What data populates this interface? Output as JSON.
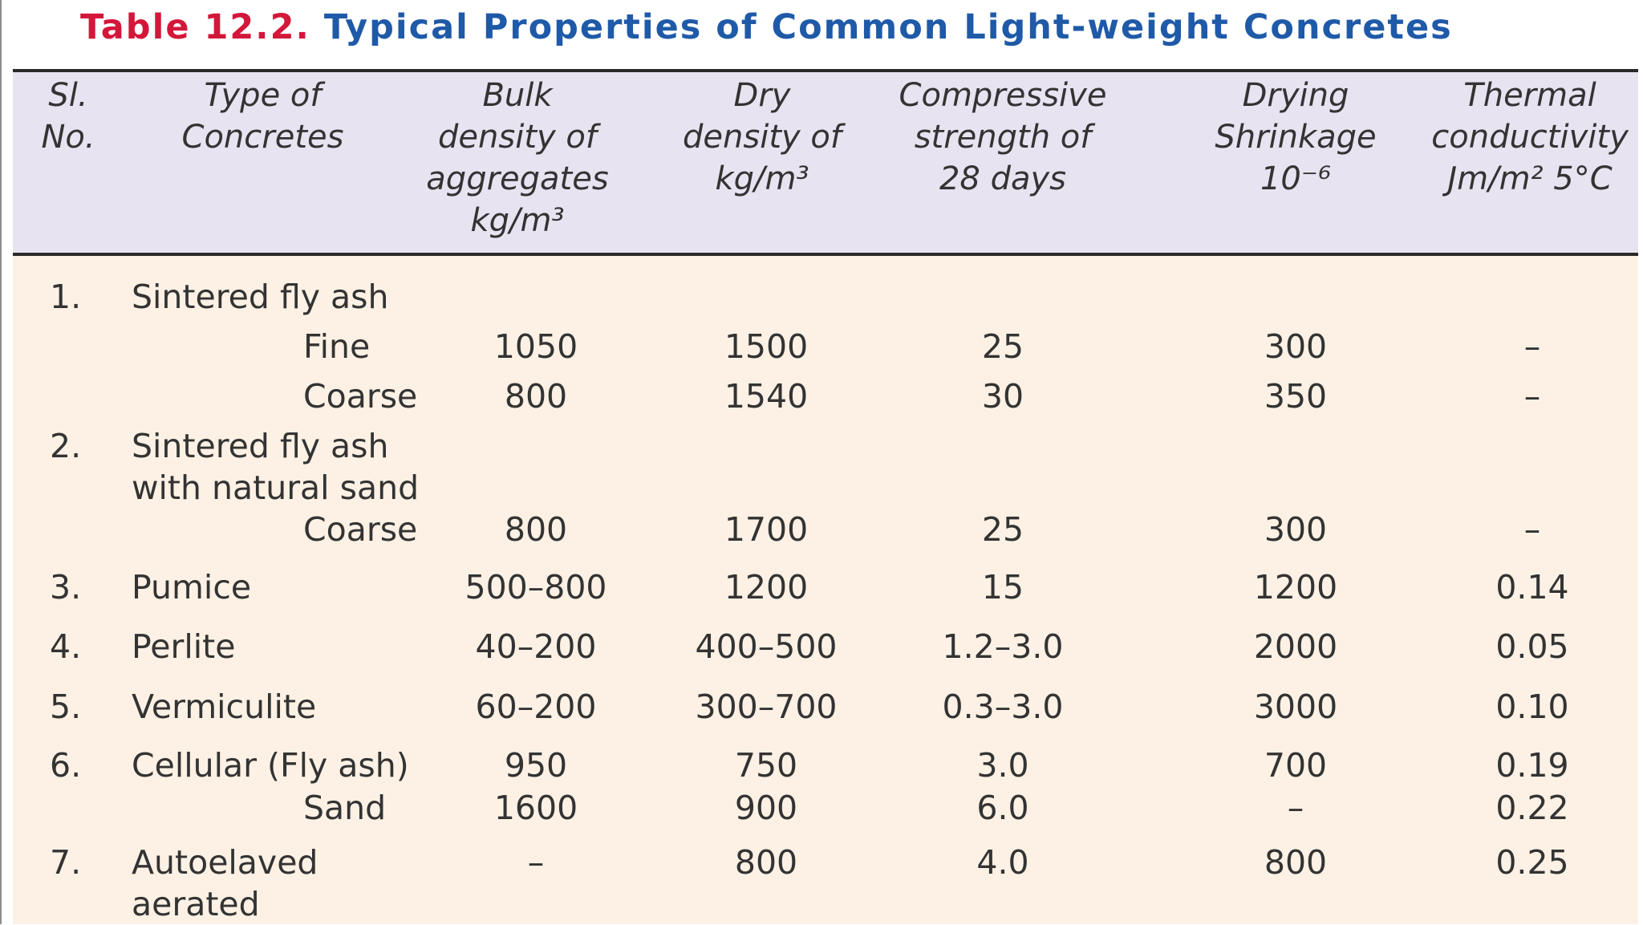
{
  "table": {
    "title_number": "Table 12.2.",
    "title_text": "Typical Properties of Common Light-weight Concretes",
    "headers": {
      "sl": "Sl.\nNo.",
      "type": "Type of\nConcretes",
      "bulk": "Bulk\ndensity of\naggregates\nkg/m³",
      "dry": "Dry\ndensity of\nkg/m³",
      "comp": "Compressive\nstrength of\n28 days",
      "shrink": "Drying\nShrinkage\n10⁻⁶",
      "thermal": "Thermal\nconductivity\nJm/m² 5°C"
    },
    "rows": [
      {
        "sl": "1.",
        "type": "Sintered fly ash"
      },
      {
        "sub": "Fine",
        "bulk": "1050",
        "dry": "1500",
        "comp": "25",
        "shrink": "300",
        "thermal": "–"
      },
      {
        "sub": "Coarse",
        "bulk": "800",
        "dry": "1540",
        "comp": "30",
        "shrink": "350",
        "thermal": "–"
      },
      {
        "sl": "2.",
        "type": "Sintered fly ash\nwith natural sand"
      },
      {
        "sub": "Coarse",
        "bulk": "800",
        "dry": "1700",
        "comp": "25",
        "shrink": "300",
        "thermal": "–"
      },
      {
        "sl": "3.",
        "type": "Pumice",
        "bulk": "500–800",
        "dry": "1200",
        "comp": "15",
        "shrink": "1200",
        "thermal": "0.14"
      },
      {
        "sl": "4.",
        "type": "Perlite",
        "bulk": "40–200",
        "dry": "400–500",
        "comp": "1.2–3.0",
        "shrink": "2000",
        "thermal": "0.05"
      },
      {
        "sl": "5.",
        "type": "Vermiculite",
        "bulk": "60–200",
        "dry": "300–700",
        "comp": "0.3–3.0",
        "shrink": "3000",
        "thermal": "0.10"
      },
      {
        "sl": "6.",
        "type": "Cellular (Fly ash)",
        "bulk": "950",
        "dry": "750",
        "comp": "3.0",
        "shrink": "700",
        "thermal": "0.19"
      },
      {
        "sub": "Sand",
        "bulk": "1600",
        "dry": "900",
        "comp": "6.0",
        "shrink": "–",
        "thermal": "0.22"
      },
      {
        "sl": "7.",
        "type": "Autoelaved\naerated",
        "bulk": "–",
        "dry": "800",
        "comp": "4.0",
        "shrink": "800",
        "thermal": "0.25"
      }
    ]
  }
}
